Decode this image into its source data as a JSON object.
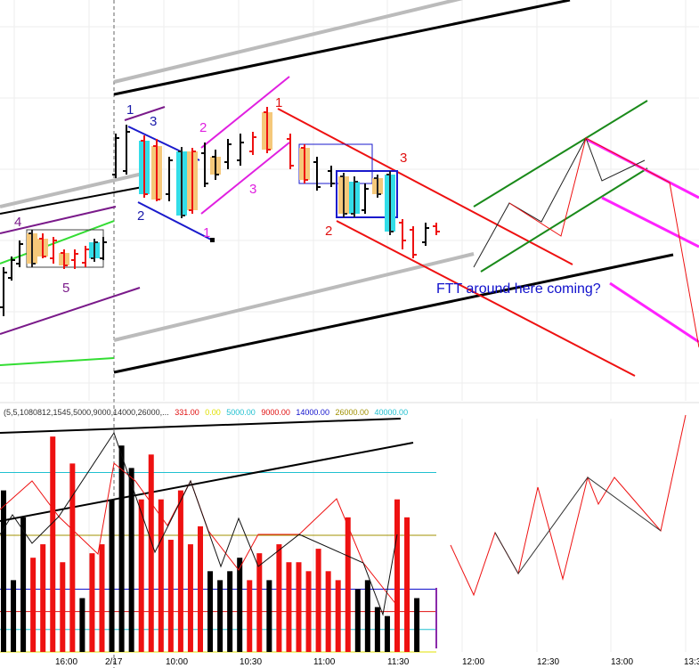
{
  "chart_data": {
    "type": "candlestick",
    "x_axis": {
      "tick_labels": [
        "16:00",
        "2/17",
        "10:00",
        "10:30",
        "11:00",
        "11:30",
        "12:00",
        "12:30",
        "13:00",
        "13:3"
      ],
      "session_break_label": "2/17"
    },
    "price_panel": {
      "pattern_labels": [
        {
          "text": "1",
          "color": "#1a1aaa"
        },
        {
          "text": "3",
          "color": "#1a1aaa"
        },
        {
          "text": "2",
          "color": "#1a1aaa"
        },
        {
          "text": "2",
          "color": "#e020e0"
        },
        {
          "text": "3",
          "color": "#e020e0"
        },
        {
          "text": "1",
          "color": "#e020e0"
        },
        {
          "text": "1",
          "color": "#e01010"
        },
        {
          "text": "3",
          "color": "#e01010"
        },
        {
          "text": "2",
          "color": "#e01010"
        },
        {
          "text": "4",
          "color": "#7a1a8a"
        },
        {
          "text": "5",
          "color": "#7a1a8a"
        }
      ],
      "annotation": {
        "text": "FTT around here coming?",
        "color": "#1010cc"
      }
    },
    "volume_panel": {
      "header_values": [
        {
          "text": "(5,5,1080812,1545,5000,9000,14000,26000,...",
          "color": "#333333"
        },
        {
          "text": "331.00",
          "color": "#e01010"
        },
        {
          "text": "0.00",
          "color": "#e0e000"
        },
        {
          "text": "5000.00",
          "color": "#20c0d0"
        },
        {
          "text": "9000.00",
          "color": "#e01010"
        },
        {
          "text": "14000.00",
          "color": "#1010cc"
        },
        {
          "text": "26000.00",
          "color": "#a09000"
        },
        {
          "text": "40000.00",
          "color": "#20c0d0"
        }
      ],
      "reference_levels": [
        {
          "value": 40000,
          "color": "#20c0d0"
        },
        {
          "value": 26000,
          "color": "#a09000"
        },
        {
          "value": 14000,
          "color": "#1010cc"
        },
        {
          "value": 9000,
          "color": "#e01010"
        },
        {
          "value": 5000,
          "color": "#20c0d0"
        },
        {
          "value": 0,
          "color": "#e0e000"
        }
      ],
      "bar_colors": {
        "up": "#000000",
        "down": "#ee1111"
      },
      "bars": [
        {
          "value": 36000,
          "dir": "up"
        },
        {
          "value": 16000,
          "dir": "up"
        },
        {
          "value": 30000,
          "dir": "up"
        },
        {
          "value": 21000,
          "dir": "down"
        },
        {
          "value": 24000,
          "dir": "down"
        },
        {
          "value": 48000,
          "dir": "down"
        },
        {
          "value": 20000,
          "dir": "down"
        },
        {
          "value": 42000,
          "dir": "down"
        },
        {
          "value": 12000,
          "dir": "up"
        },
        {
          "value": 22000,
          "dir": "down"
        },
        {
          "value": 24000,
          "dir": "down"
        },
        {
          "value": 34000,
          "dir": "up"
        },
        {
          "value": 46000,
          "dir": "up"
        },
        {
          "value": 41000,
          "dir": "up"
        },
        {
          "value": 34000,
          "dir": "down"
        },
        {
          "value": 44000,
          "dir": "down"
        },
        {
          "value": 34000,
          "dir": "down"
        },
        {
          "value": 25000,
          "dir": "down"
        },
        {
          "value": 36000,
          "dir": "down"
        },
        {
          "value": 24000,
          "dir": "down"
        },
        {
          "value": 28000,
          "dir": "down"
        },
        {
          "value": 18000,
          "dir": "up"
        },
        {
          "value": 16000,
          "dir": "up"
        },
        {
          "value": 18000,
          "dir": "up"
        },
        {
          "value": 21000,
          "dir": "up"
        },
        {
          "value": 16000,
          "dir": "down"
        },
        {
          "value": 22000,
          "dir": "down"
        },
        {
          "value": 16000,
          "dir": "up"
        },
        {
          "value": 24000,
          "dir": "down"
        },
        {
          "value": 20000,
          "dir": "down"
        },
        {
          "value": 20000,
          "dir": "down"
        },
        {
          "value": 18000,
          "dir": "down"
        },
        {
          "value": 23000,
          "dir": "down"
        },
        {
          "value": 18000,
          "dir": "down"
        },
        {
          "value": 16000,
          "dir": "down"
        },
        {
          "value": 30000,
          "dir": "down"
        },
        {
          "value": 14000,
          "dir": "up"
        },
        {
          "value": 16000,
          "dir": "up"
        },
        {
          "value": 10000,
          "dir": "up"
        },
        {
          "value": 8000,
          "dir": "up"
        },
        {
          "value": 34000,
          "dir": "down"
        },
        {
          "value": 30000,
          "dir": "down"
        },
        {
          "value": 12000,
          "dir": "up"
        }
      ]
    }
  }
}
